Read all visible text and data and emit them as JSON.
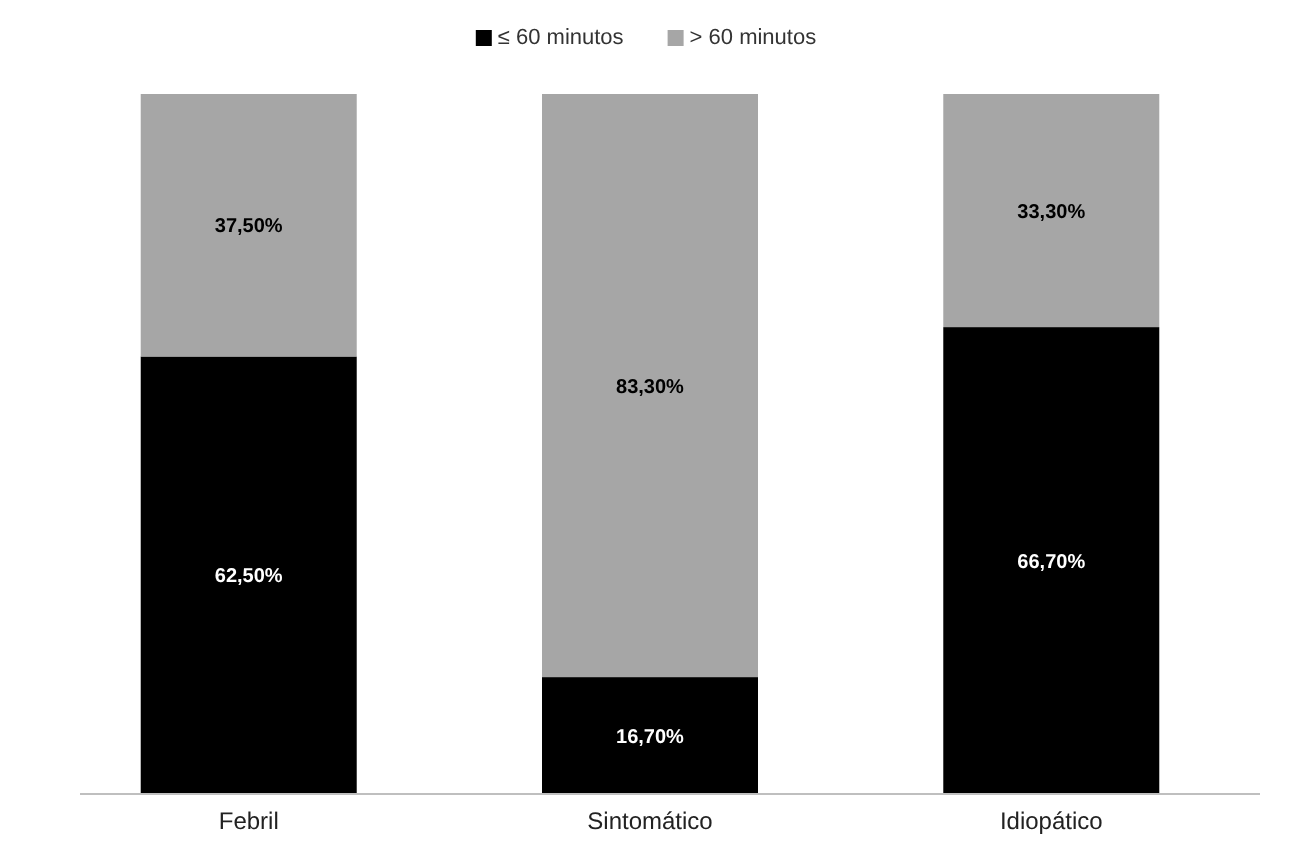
{
  "chart_data": {
    "type": "bar",
    "stacked": true,
    "categories": [
      "Febril",
      "Sintomático",
      "Idiopático"
    ],
    "series": [
      {
        "name": "≤ 60 minutos",
        "color": "#000000",
        "values": [
          62.5,
          16.7,
          66.7
        ],
        "value_labels": [
          "62,50%",
          "16,70%",
          "66,70%"
        ]
      },
      {
        "name": "> 60 minutos",
        "color": "#a6a6a6",
        "values": [
          37.5,
          83.3,
          33.3
        ],
        "value_labels": [
          "37,50%",
          "83,30%",
          "33,30%"
        ]
      }
    ],
    "ylim": [
      0,
      100
    ],
    "tick_labels": "x",
    "legend": "top"
  }
}
